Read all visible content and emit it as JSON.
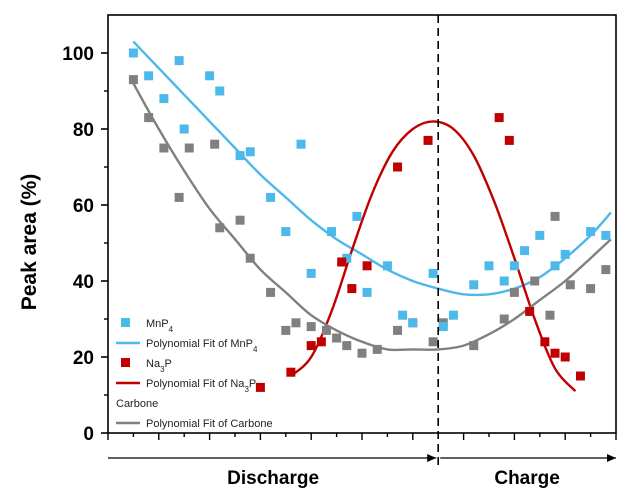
{
  "chart_data": {
    "type": "scatter",
    "title": "",
    "xlabel": "",
    "ylabel": "Peak area (%)",
    "xlim": [
      0,
      100
    ],
    "ylim": [
      0,
      110
    ],
    "y_ticks": [
      0,
      20,
      40,
      60,
      80,
      100
    ],
    "grid": false,
    "legend_position": "bottom-left",
    "divider_x": 65,
    "phases": [
      {
        "name": "Discharge",
        "from": 0,
        "to": 65
      },
      {
        "name": "Charge",
        "from": 65,
        "to": 100
      }
    ],
    "series": [
      {
        "name": "MnP",
        "name_sub": "4",
        "color": "#4DB8EA",
        "x": [
          5,
          8,
          11,
          14,
          15,
          20,
          22,
          26,
          28,
          32,
          35,
          38,
          40,
          44,
          47,
          49,
          51,
          55,
          58,
          60,
          64,
          66,
          68,
          72,
          75,
          78,
          80,
          82,
          85,
          88,
          90,
          95,
          98
        ],
        "y": [
          100,
          94,
          88,
          98,
          80,
          94,
          90,
          73,
          74,
          62,
          53,
          76,
          42,
          53,
          46,
          57,
          37,
          44,
          31,
          29,
          42,
          28,
          31,
          39,
          44,
          40,
          44,
          48,
          52,
          44,
          47,
          53,
          52
        ],
        "fit_name": "Polynomial Fit of MnP",
        "fit_name_sub": "4",
        "fit_x": [
          5,
          10,
          15,
          20,
          25,
          30,
          35,
          40,
          45,
          50,
          55,
          60,
          65,
          70,
          75,
          80,
          85,
          90,
          95,
          99
        ],
        "fit_y": [
          103,
          96,
          89,
          82,
          75,
          68,
          62,
          56,
          51,
          47,
          43,
          40,
          38,
          36.5,
          36.5,
          38,
          41,
          46,
          52,
          58
        ]
      },
      {
        "name": "Na",
        "name_sub": "3",
        "name_suffix": "P",
        "color": "#C00000",
        "x": [
          30,
          36,
          40,
          42,
          46,
          48,
          51,
          57,
          63,
          77,
          79,
          83,
          86,
          88,
          90,
          93
        ],
        "y": [
          12,
          16,
          23,
          24,
          45,
          38,
          44,
          70,
          77,
          83,
          77,
          32,
          24,
          21,
          20,
          15
        ],
        "fit_name": "Polynomial Fit of Na",
        "fit_name_sub": "3",
        "fit_name_suffix": "P",
        "fit_x": [
          36,
          40,
          44,
          48,
          52,
          56,
          60,
          64,
          68,
          72,
          76,
          80,
          84,
          88,
          92
        ],
        "fit_y": [
          15,
          20,
          32,
          48,
          63,
          74,
          80,
          82,
          80,
          73,
          61,
          46,
          30,
          17,
          11
        ]
      },
      {
        "name": "Carbone",
        "color": "#808080",
        "x": [
          5,
          8,
          11,
          14,
          16,
          21,
          22,
          26,
          28,
          32,
          35,
          37,
          40,
          43,
          45,
          47,
          50,
          53,
          57,
          60,
          64,
          66,
          72,
          78,
          80,
          84,
          87,
          88,
          91,
          95,
          98
        ],
        "y": [
          93,
          83,
          75,
          62,
          75,
          76,
          54,
          56,
          46,
          37,
          27,
          29,
          28,
          27,
          25,
          23,
          21,
          22,
          27,
          29,
          24,
          29,
          23,
          30,
          37,
          40,
          31,
          57,
          39,
          38,
          43
        ],
        "fit_name": "Polynomial Fit of Carbone",
        "fit_x": [
          5,
          10,
          15,
          20,
          25,
          30,
          35,
          40,
          45,
          50,
          55,
          60,
          65,
          70,
          75,
          80,
          85,
          90,
          95,
          99
        ],
        "fit_y": [
          92,
          80,
          69,
          59,
          51,
          43,
          37,
          31,
          27,
          24,
          22,
          22,
          22,
          23,
          26,
          30,
          35,
          40,
          46,
          51
        ]
      }
    ]
  }
}
